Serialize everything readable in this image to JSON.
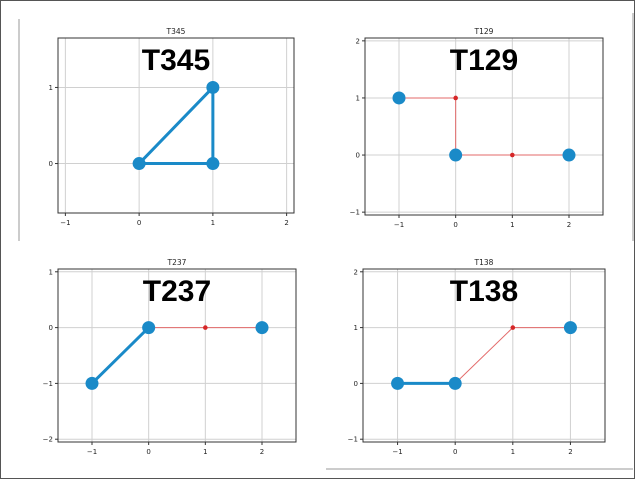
{
  "chart_data": [
    {
      "type": "scatter",
      "title": "T345",
      "big_label": "T345",
      "xlim": [
        -1.1,
        2.1
      ],
      "ylim": [
        -0.65,
        1.65
      ],
      "xticks": [
        -1,
        0,
        1,
        2
      ],
      "yticks": [
        0,
        1
      ],
      "xtick_labels": [
        "−1",
        "0",
        "1",
        "2"
      ],
      "ytick_labels": [
        "0",
        "1"
      ],
      "grid": true,
      "nodes": [
        {
          "x": 0,
          "y": 0
        },
        {
          "x": 1,
          "y": 0
        },
        {
          "x": 1,
          "y": 1
        }
      ],
      "thick_edges": [
        [
          [
            0,
            0
          ],
          [
            1,
            0
          ]
        ],
        [
          [
            1,
            0
          ],
          [
            1,
            1
          ]
        ],
        [
          [
            0,
            0
          ],
          [
            1,
            1
          ]
        ]
      ],
      "thin_edges": [],
      "small_nodes": []
    },
    {
      "type": "scatter",
      "title": "T129",
      "big_label": "T129",
      "xlim": [
        -1.6,
        2.6
      ],
      "ylim": [
        -1.05,
        2.05
      ],
      "xticks": [
        -1,
        0,
        1,
        2
      ],
      "yticks": [
        -1,
        0,
        1,
        2
      ],
      "xtick_labels": [
        "−1",
        "0",
        "1",
        "2"
      ],
      "ytick_labels": [
        "−1",
        "0",
        "1",
        "2"
      ],
      "grid": true,
      "nodes": [
        {
          "x": -1,
          "y": 1
        },
        {
          "x": 0,
          "y": 0
        },
        {
          "x": 2,
          "y": 0
        }
      ],
      "thick_edges": [],
      "thin_edges": [
        [
          [
            -1,
            1
          ],
          [
            0,
            1
          ]
        ],
        [
          [
            0,
            1
          ],
          [
            0,
            0
          ]
        ],
        [
          [
            0,
            0
          ],
          [
            1,
            0
          ]
        ],
        [
          [
            1,
            0
          ],
          [
            2,
            0
          ]
        ]
      ],
      "small_nodes": [
        {
          "x": 0,
          "y": 1
        },
        {
          "x": 1,
          "y": 0
        }
      ]
    },
    {
      "type": "scatter",
      "title": "T237",
      "big_label": "T237",
      "xlim": [
        -1.6,
        2.6
      ],
      "ylim": [
        -2.05,
        1.05
      ],
      "xticks": [
        -1,
        0,
        1,
        2
      ],
      "yticks": [
        -2,
        -1,
        0,
        1
      ],
      "xtick_labels": [
        "−1",
        "0",
        "1",
        "2"
      ],
      "ytick_labels": [
        "−2",
        "−1",
        "0",
        "1"
      ],
      "grid": true,
      "nodes": [
        {
          "x": -1,
          "y": -1
        },
        {
          "x": 0,
          "y": 0
        },
        {
          "x": 2,
          "y": 0
        }
      ],
      "thick_edges": [
        [
          [
            -1,
            -1
          ],
          [
            0,
            0
          ]
        ]
      ],
      "thin_edges": [
        [
          [
            0,
            0
          ],
          [
            1,
            0
          ]
        ],
        [
          [
            1,
            0
          ],
          [
            2,
            0
          ]
        ]
      ],
      "small_nodes": [
        {
          "x": 1,
          "y": 0
        }
      ]
    },
    {
      "type": "scatter",
      "title": "T138",
      "big_label": "T138",
      "xlim": [
        -1.6,
        2.6
      ],
      "ylim": [
        -1.05,
        2.05
      ],
      "xticks": [
        -1,
        0,
        1,
        2
      ],
      "yticks": [
        -1,
        0,
        1,
        2
      ],
      "xtick_labels": [
        "−1",
        "0",
        "1",
        "2"
      ],
      "ytick_labels": [
        "−1",
        "0",
        "1",
        "2"
      ],
      "grid": true,
      "nodes": [
        {
          "x": -1,
          "y": 0
        },
        {
          "x": 0,
          "y": 0
        },
        {
          "x": 2,
          "y": 1
        }
      ],
      "thick_edges": [
        [
          [
            -1,
            0
          ],
          [
            0,
            0
          ]
        ]
      ],
      "thin_edges": [
        [
          [
            0,
            0
          ],
          [
            1,
            1
          ]
        ],
        [
          [
            1,
            1
          ],
          [
            2,
            1
          ]
        ]
      ],
      "small_nodes": [
        {
          "x": 1,
          "y": 1
        }
      ]
    }
  ],
  "colors": {
    "node": "#1a8ac8",
    "thick_edge": "#1a8ac8",
    "thin_edge": "#e36a6a",
    "small_node": "#d62728",
    "grid": "#d0d0d0",
    "axes": "#333333"
  }
}
